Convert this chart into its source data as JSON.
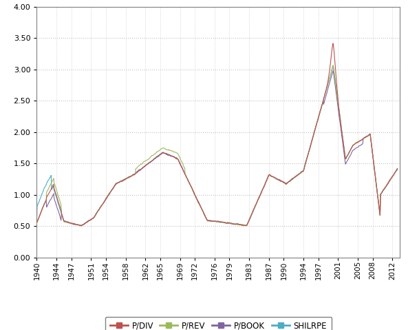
{
  "title": "",
  "ylabel": "",
  "xlabel": "",
  "ylim": [
    0.0,
    4.0
  ],
  "yticks": [
    0.0,
    0.5,
    1.0,
    1.5,
    2.0,
    2.5,
    3.0,
    3.5,
    4.0
  ],
  "xtick_labels": [
    "1940",
    "1944",
    "1947",
    "1951",
    "1954",
    "1958",
    "1962",
    "1965",
    "1969",
    "1972",
    "1976",
    "1979",
    "1983",
    "1987",
    "1990",
    "1994",
    "1997",
    "2001",
    "2005",
    "2008",
    "2012"
  ],
  "series_colors": {
    "P/DIV": "#C0504D",
    "P/REV": "#9BBB59",
    "P/BOOK": "#8064A2",
    "SHILRPE": "#4BACC6"
  },
  "line_width": 0.8,
  "grid_color": "#C0C0C0",
  "background_color": "#FFFFFF",
  "legend_items": [
    "P/DIV",
    "P/REV",
    "P/BOOK",
    "SHILRPE"
  ]
}
